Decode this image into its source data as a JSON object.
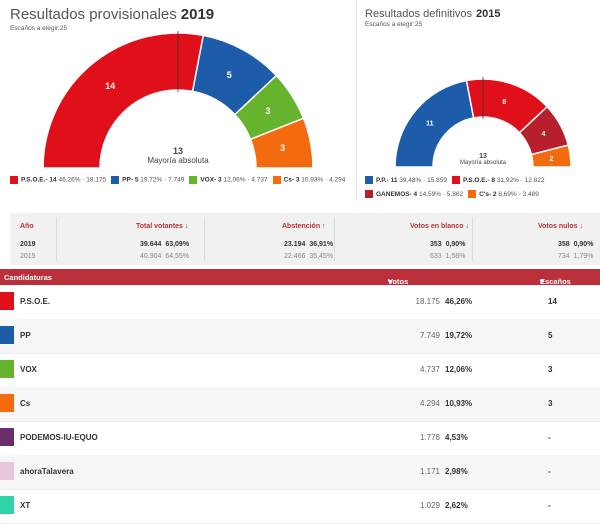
{
  "p2019": {
    "title": "Resultados provisionales",
    "year": "2019",
    "sub": "Escaños a elegir:25",
    "center_num": "13",
    "center_text": "Mayoría absoluta"
  },
  "p2015": {
    "title": "Resultados definitivos",
    "year": "2015",
    "sub": "Escaños a elegir:25",
    "center_num": "13",
    "center_text": "Mayoría absoluta"
  },
  "chart_data": [
    {
      "type": "pie",
      "categories": [
        "P.S.O.E.",
        "PP",
        "VOX",
        "Cs"
      ],
      "values": [
        14,
        5,
        3,
        3
      ],
      "colors": [
        "#e0101a",
        "#1d5ca8",
        "#66b32e",
        "#f46a0e"
      ],
      "legend": [
        {
          "name": "P.S.O.E.- 14",
          "info": "46,26% · 18.175"
        },
        {
          "name": "PP- 5",
          "info": "19,72% · 7.749"
        },
        {
          "name": "VOX- 3",
          "info": "12,06% · 4.737"
        },
        {
          "name": "Cs- 3",
          "info": "10,93% · 4.294"
        }
      ]
    },
    {
      "type": "pie",
      "categories": [
        "P.P.",
        "P.S.O.E.",
        "GANEMOS",
        "C's"
      ],
      "values": [
        11,
        8,
        4,
        2
      ],
      "colors": [
        "#1d5ca8",
        "#e0101a",
        "#b5202c",
        "#f46a0e"
      ],
      "legend": [
        {
          "name": "P.P.- 11",
          "info": "39,48% · 15.859"
        },
        {
          "name": "P.S.O.E.- 8",
          "info": "31,92% · 12.822"
        },
        {
          "name": "GANEMOS- 4",
          "info": "14,59% · 5.862"
        },
        {
          "name": "C's- 2",
          "info": "8,69% · 3.489"
        }
      ]
    }
  ],
  "votes_table": {
    "headers": {
      "year": "Año",
      "total": "Total votantes",
      "abst": "Abstención",
      "blank": "Votos en blanco",
      "null": "Votos nulos"
    },
    "rows": [
      {
        "year": "2019",
        "total_n": "39.644",
        "total_p": "63,09%",
        "abst_n": "23.194",
        "abst_p": "36,91%",
        "blank_n": "353",
        "blank_p": "0,90%",
        "null_n": "358",
        "null_p": "0,90%"
      },
      {
        "year": "2015",
        "total_n": "40.904",
        "total_p": "64,55%",
        "abst_n": "22.466",
        "abst_p": "35,45%",
        "blank_n": "633",
        "blank_p": "1,58%",
        "null_n": "734",
        "null_p": "1,79%"
      }
    ]
  },
  "cand": {
    "head_name": "Candidaturas",
    "head_votes": "Votos",
    "head_seats": "Escaños",
    "rows": [
      {
        "name": "P.S.O.E.",
        "votes": "18.175",
        "pct": "46,26%",
        "seats": "14",
        "color": "#e0101a"
      },
      {
        "name": "PP",
        "votes": "7.749",
        "pct": "19,72%",
        "seats": "5",
        "color": "#1d5ca8"
      },
      {
        "name": "VOX",
        "votes": "4.737",
        "pct": "12,06%",
        "seats": "3",
        "color": "#66b32e"
      },
      {
        "name": "Cs",
        "votes": "4.294",
        "pct": "10,93%",
        "seats": "3",
        "color": "#f46a0e"
      },
      {
        "name": "PODEMOS-IU-EQUO",
        "votes": "1.778",
        "pct": "4,53%",
        "seats": "-",
        "color": "#6b2c6e"
      },
      {
        "name": "ahoraTalavera",
        "votes": "1.171",
        "pct": "2,98%",
        "seats": "-",
        "color": "#e6c6dc"
      },
      {
        "name": "XT",
        "votes": "1.029",
        "pct": "2,62%",
        "seats": "-",
        "color": "#2fd4a6"
      }
    ]
  }
}
